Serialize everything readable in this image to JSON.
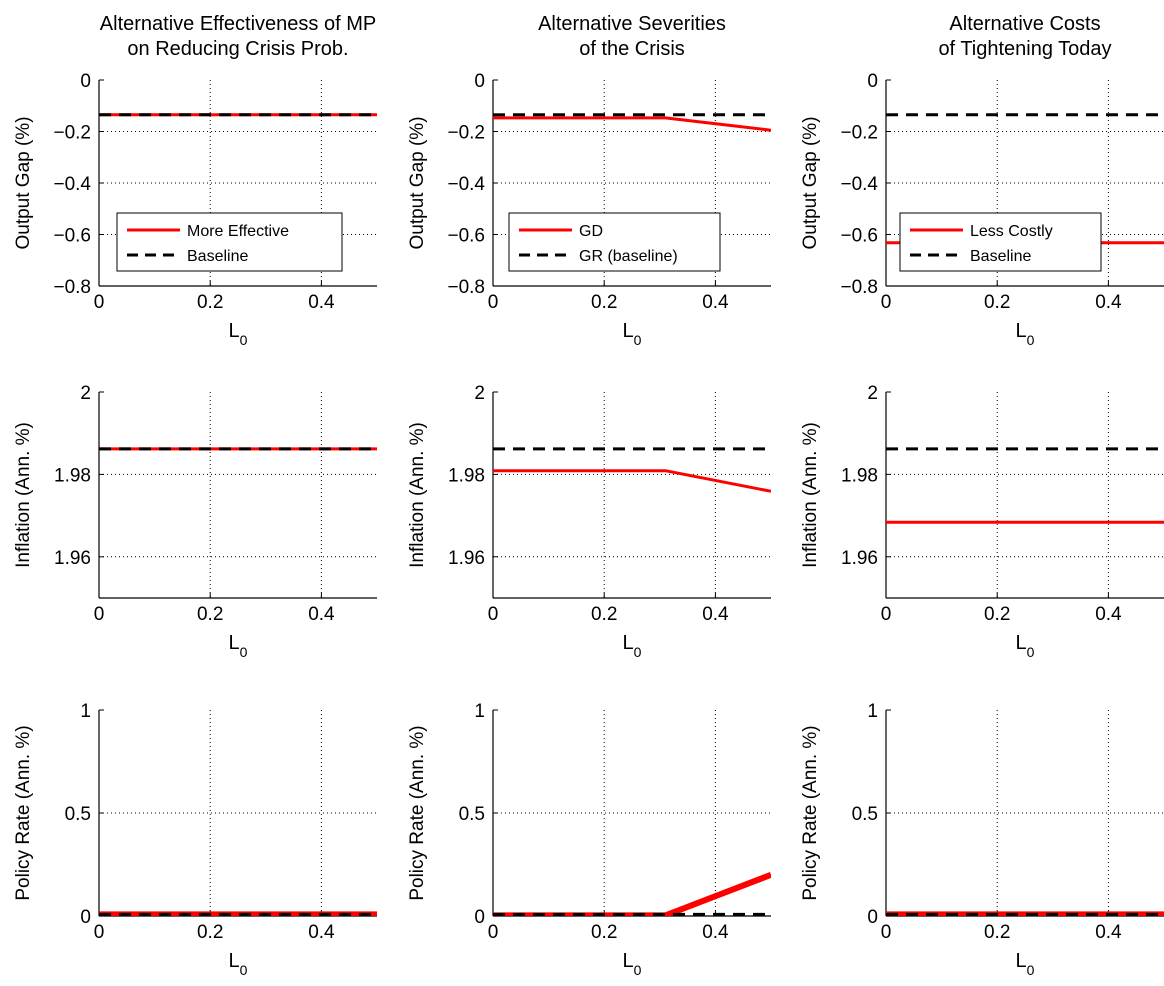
{
  "chart_data": [
    {
      "type": "line",
      "title": [
        "Alternative Effectiveness of MP",
        "on Reducing Crisis Prob."
      ],
      "ylabel": "Output Gap (%)",
      "xlabel": "L",
      "xlabel_sub": "0",
      "xlim": [
        0,
        0.5
      ],
      "ylim": [
        -0.8,
        0
      ],
      "xticks": [
        0,
        0.2,
        0.4
      ],
      "xticklabels": [
        "0",
        "0.2",
        "0.4"
      ],
      "yticks": [
        0,
        -0.2,
        -0.4,
        -0.6,
        -0.8
      ],
      "yticklabels": [
        "0",
        "−0.2",
        "−0.4",
        "−0.6",
        "−0.8"
      ],
      "grid": true,
      "legend": {
        "position": "bottom-left",
        "entries": [
          "More Effective",
          "Baseline"
        ]
      },
      "series": [
        {
          "name": "More Effective",
          "color": "#ff0000",
          "style": "solid",
          "x": [
            0,
            0.5
          ],
          "y": [
            -0.135,
            -0.135
          ]
        },
        {
          "name": "Baseline",
          "color": "#000000",
          "style": "dashed",
          "x": [
            0,
            0.5
          ],
          "y": [
            -0.135,
            -0.135
          ]
        }
      ]
    },
    {
      "type": "line",
      "title": [
        "Alternative Severities",
        "of the Crisis"
      ],
      "ylabel": "Output Gap (%)",
      "xlabel": "L",
      "xlabel_sub": "0",
      "xlim": [
        0,
        0.5
      ],
      "ylim": [
        -0.8,
        0
      ],
      "xticks": [
        0,
        0.2,
        0.4
      ],
      "xticklabels": [
        "0",
        "0.2",
        "0.4"
      ],
      "yticks": [
        0,
        -0.2,
        -0.4,
        -0.6,
        -0.8
      ],
      "yticklabels": [
        "0",
        "−0.2",
        "−0.4",
        "−0.6",
        "−0.8"
      ],
      "grid": true,
      "legend": {
        "position": "bottom-left",
        "entries": [
          "GD",
          "GR (baseline)"
        ]
      },
      "series": [
        {
          "name": "GD",
          "color": "#ff0000",
          "style": "solid",
          "x": [
            0,
            0.31,
            0.5
          ],
          "y": [
            -0.147,
            -0.147,
            -0.195
          ]
        },
        {
          "name": "GR (baseline)",
          "color": "#000000",
          "style": "dashed",
          "x": [
            0,
            0.5
          ],
          "y": [
            -0.135,
            -0.135
          ]
        }
      ]
    },
    {
      "type": "line",
      "title": [
        "Alternative Costs",
        "of Tightening Today"
      ],
      "ylabel": "Output Gap (%)",
      "xlabel": "L",
      "xlabel_sub": "0",
      "xlim": [
        0,
        0.5
      ],
      "ylim": [
        -0.8,
        0
      ],
      "xticks": [
        0,
        0.2,
        0.4
      ],
      "xticklabels": [
        "0",
        "0.2",
        "0.4"
      ],
      "yticks": [
        0,
        -0.2,
        -0.4,
        -0.6,
        -0.8
      ],
      "yticklabels": [
        "0",
        "−0.2",
        "−0.4",
        "−0.6",
        "−0.8"
      ],
      "grid": true,
      "legend": {
        "position": "bottom-left",
        "entries": [
          "Less Costly",
          "Baseline"
        ]
      },
      "series": [
        {
          "name": "Less Costly",
          "color": "#ff0000",
          "style": "solid",
          "x": [
            0,
            0.5
          ],
          "y": [
            -0.632,
            -0.632
          ]
        },
        {
          "name": "Baseline",
          "color": "#000000",
          "style": "dashed",
          "x": [
            0,
            0.5
          ],
          "y": [
            -0.135,
            -0.135
          ]
        }
      ]
    },
    {
      "type": "line",
      "title": [],
      "ylabel": "Inflation (Ann. %)",
      "xlabel": "L",
      "xlabel_sub": "0",
      "xlim": [
        0,
        0.5
      ],
      "ylim": [
        1.95,
        2.0
      ],
      "xticks": [
        0,
        0.2,
        0.4
      ],
      "xticklabels": [
        "0",
        "0.2",
        "0.4"
      ],
      "yticks": [
        2,
        1.98,
        1.96
      ],
      "yticklabels": [
        "2",
        "1.98",
        "1.96"
      ],
      "grid": true,
      "series": [
        {
          "color": "#ff0000",
          "style": "solid",
          "x": [
            0,
            0.5
          ],
          "y": [
            1.9862,
            1.9862
          ]
        },
        {
          "color": "#000000",
          "style": "dashed",
          "x": [
            0,
            0.5
          ],
          "y": [
            1.9862,
            1.9862
          ]
        }
      ]
    },
    {
      "type": "line",
      "title": [],
      "ylabel": "Inflation (Ann. %)",
      "xlabel": "L",
      "xlabel_sub": "0",
      "xlim": [
        0,
        0.5
      ],
      "ylim": [
        1.95,
        2.0
      ],
      "xticks": [
        0,
        0.2,
        0.4
      ],
      "xticklabels": [
        "0",
        "0.2",
        "0.4"
      ],
      "yticks": [
        2,
        1.98,
        1.96
      ],
      "yticklabels": [
        "2",
        "1.98",
        "1.96"
      ],
      "grid": true,
      "series": [
        {
          "color": "#ff0000",
          "style": "solid",
          "x": [
            0,
            0.31,
            0.5
          ],
          "y": [
            1.9809,
            1.9809,
            1.9759
          ]
        },
        {
          "color": "#000000",
          "style": "dashed",
          "x": [
            0,
            0.5
          ],
          "y": [
            1.9862,
            1.9862
          ]
        }
      ]
    },
    {
      "type": "line",
      "title": [],
      "ylabel": "Inflation (Ann. %)",
      "xlabel": "L",
      "xlabel_sub": "0",
      "xlim": [
        0,
        0.5
      ],
      "ylim": [
        1.95,
        2.0
      ],
      "xticks": [
        0,
        0.2,
        0.4
      ],
      "xticklabels": [
        "0",
        "0.2",
        "0.4"
      ],
      "yticks": [
        2,
        1.98,
        1.96
      ],
      "yticklabels": [
        "2",
        "1.98",
        "1.96"
      ],
      "grid": true,
      "series": [
        {
          "color": "#ff0000",
          "style": "solid",
          "x": [
            0,
            0.5
          ],
          "y": [
            1.9684,
            1.9684
          ]
        },
        {
          "color": "#000000",
          "style": "dashed",
          "x": [
            0,
            0.5
          ],
          "y": [
            1.9862,
            1.9862
          ]
        }
      ]
    },
    {
      "type": "line",
      "title": [],
      "ylabel": "Policy Rate (Ann. %)",
      "xlabel": "L",
      "xlabel_sub": "0",
      "xlim": [
        0,
        0.5
      ],
      "ylim": [
        0,
        1
      ],
      "xticks": [
        0,
        0.2,
        0.4
      ],
      "xticklabels": [
        "0",
        "0.2",
        "0.4"
      ],
      "yticks": [
        1,
        0.5,
        0
      ],
      "yticklabels": [
        "1",
        "0.5",
        "0"
      ],
      "grid": true,
      "series": [
        {
          "color": "#ff0000",
          "style": "thick",
          "x": [
            0,
            0.5
          ],
          "y": [
            0.008,
            0.008
          ]
        },
        {
          "color": "#000000",
          "style": "dashed",
          "x": [
            0,
            0.5
          ],
          "y": [
            0.008,
            0.008
          ]
        }
      ]
    },
    {
      "type": "line",
      "title": [],
      "ylabel": "Policy Rate (Ann. %)",
      "xlabel": "L",
      "xlabel_sub": "0",
      "xlim": [
        0,
        0.5
      ],
      "ylim": [
        0,
        1
      ],
      "xticks": [
        0,
        0.2,
        0.4
      ],
      "xticklabels": [
        "0",
        "0.2",
        "0.4"
      ],
      "yticks": [
        1,
        0.5,
        0
      ],
      "yticklabels": [
        "1",
        "0.5",
        "0"
      ],
      "grid": true,
      "series": [
        {
          "color": "#ff0000",
          "style": "thick",
          "x": [
            0,
            0.31,
            0.5
          ],
          "y": [
            0.003,
            0.003,
            0.2
          ]
        },
        {
          "color": "#000000",
          "style": "dashed",
          "x": [
            0,
            0.5
          ],
          "y": [
            0.008,
            0.008
          ]
        }
      ]
    },
    {
      "type": "line",
      "title": [],
      "ylabel": "Policy Rate (Ann. %)",
      "xlabel": "L",
      "xlabel_sub": "0",
      "xlim": [
        0,
        0.5
      ],
      "ylim": [
        0,
        1
      ],
      "xticks": [
        0,
        0.2,
        0.4
      ],
      "xticklabels": [
        "0",
        "0.2",
        "0.4"
      ],
      "yticks": [
        1,
        0.5,
        0
      ],
      "yticklabels": [
        "1",
        "0.5",
        "0"
      ],
      "grid": true,
      "series": [
        {
          "color": "#ff0000",
          "style": "thick",
          "x": [
            0,
            0.5
          ],
          "y": [
            0.008,
            0.008
          ]
        },
        {
          "color": "#000000",
          "style": "dashed",
          "x": [
            0,
            0.5
          ],
          "y": [
            0.008,
            0.008
          ]
        }
      ]
    }
  ]
}
